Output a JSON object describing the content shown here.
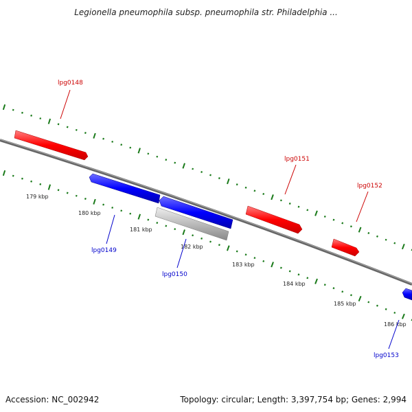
{
  "title": "Legionella pneumophila subsp. pneumophila str. Philadelphia ...",
  "footer": {
    "accession": "Accession: NC_002942",
    "summary": "Topology: circular; Length: 3,397,754 bp; Genes: 2,994"
  },
  "colors": {
    "forward_gene": "#ff0000",
    "reverse_gene": "#0000ff",
    "other_feature": "#bbbbbb",
    "backbone": "#777777",
    "ticks": "#1a7a1a",
    "forward_label": "#cc0000",
    "reverse_label": "#0000cc"
  },
  "scale_ticks": [
    {
      "label": "179 kbp"
    },
    {
      "label": "180 kbp"
    },
    {
      "label": "181 kbp"
    },
    {
      "label": "182 kbp"
    },
    {
      "label": "183 kbp"
    },
    {
      "label": "184 kbp"
    },
    {
      "label": "185 kbp"
    },
    {
      "label": "186 kbp"
    }
  ],
  "genes": [
    {
      "name": "lpg0148",
      "strand": "forward"
    },
    {
      "name": "lpg0149",
      "strand": "reverse"
    },
    {
      "name": "lpg0150",
      "strand": "reverse"
    },
    {
      "name": "lpg0151",
      "strand": "forward"
    },
    {
      "name": "lpg0152",
      "strand": "forward"
    },
    {
      "name": "lpg0153",
      "strand": "reverse"
    }
  ],
  "unlabeled_feature": {
    "strand": "reverse",
    "type": "other"
  }
}
